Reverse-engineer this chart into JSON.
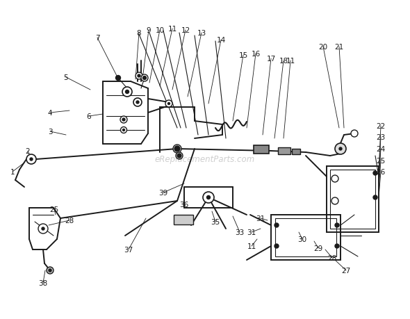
{
  "bg_color": "#ffffff",
  "line_color": "#1a1a1a",
  "watermark": "eReplacementParts.com",
  "watermark_color": "#bbbbbb",
  "label_fontsize": 7.5,
  "lw_main": 1.4,
  "lw_thin": 0.8,
  "lw_leader": 0.6
}
